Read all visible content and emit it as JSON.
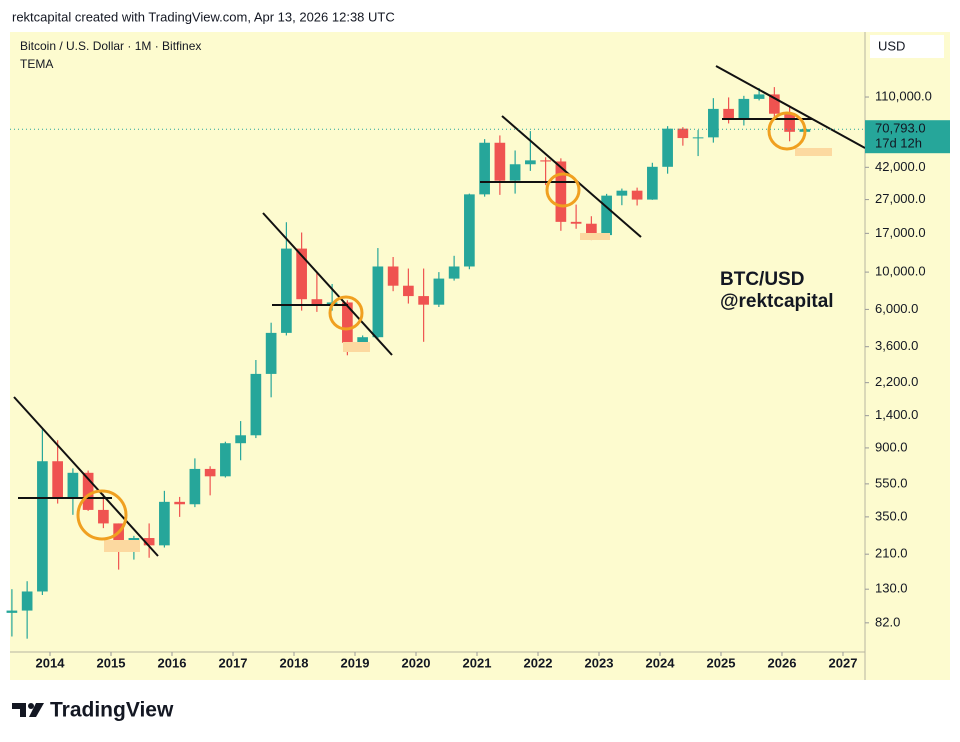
{
  "header": "rektcapital created with TradingView.com, Apr 13, 2026 12:38 UTC",
  "chart_data": {
    "type": "candlestick",
    "title": "Bitcoin / U.S. Dollar · 1M · Bitfinex",
    "subtitle": "TEMA",
    "currency": "USD",
    "annotation": [
      "BTC/USD",
      "@rektcapital"
    ],
    "log_scale": true,
    "xlim": [
      2013.344,
      2027.361
    ],
    "xticks": [
      2014,
      2015,
      2016,
      2017,
      2018,
      2019,
      2020,
      2021,
      2022,
      2023,
      2024,
      2025,
      2026,
      2027
    ],
    "ylim": [
      55,
      268000
    ],
    "yticks": [
      {
        "value": 82,
        "label": "82.0"
      },
      {
        "value": 130,
        "label": "130.0"
      },
      {
        "value": 210,
        "label": "210.0"
      },
      {
        "value": 350,
        "label": "350.0"
      },
      {
        "value": 550,
        "label": "550.0"
      },
      {
        "value": 900,
        "label": "900.0"
      },
      {
        "value": 1400,
        "label": "1,400.0"
      },
      {
        "value": 2200,
        "label": "2,200.0"
      },
      {
        "value": 3600,
        "label": "3,600.0"
      },
      {
        "value": 6000,
        "label": "6,000.0"
      },
      {
        "value": 10000,
        "label": "10,000.0"
      },
      {
        "value": 17000,
        "label": "17,000.0"
      },
      {
        "value": 27000,
        "label": "27,000.0"
      },
      {
        "value": 42000,
        "label": "42,000.0"
      },
      {
        "value": 110000,
        "label": "110,000.0"
      }
    ],
    "current_price": {
      "value": 70793,
      "label": "70,793.0"
    },
    "countdown": "17d 12h",
    "series": [
      {
        "up_color": "#26a69a",
        "down_color": "#ef5350",
        "x": [
          2013.375,
          2013.625,
          2013.875,
          2014.125,
          2014.375,
          2014.625,
          2014.875,
          2015.125,
          2015.375,
          2015.625,
          2015.875,
          2016.125,
          2016.375,
          2016.625,
          2016.875,
          2017.125,
          2017.375,
          2017.625,
          2017.875,
          2018.125,
          2018.375,
          2018.625,
          2018.875,
          2019.125,
          2019.375,
          2019.625,
          2019.875,
          2020.125,
          2020.375,
          2020.625,
          2020.875,
          2021.125,
          2021.375,
          2021.625,
          2021.875,
          2022.125,
          2022.375,
          2022.625,
          2022.875,
          2023.125,
          2023.375,
          2023.625,
          2023.875,
          2024.125,
          2024.375,
          2024.625,
          2024.875,
          2025.125,
          2025.375,
          2025.625,
          2025.875,
          2026.125,
          2026.375
        ],
        "open": [
          94,
          97,
          126,
          750,
          450,
          640,
          385,
          320,
          245,
          262,
          237,
          430,
          416,
          675,
          610,
          960,
          1070,
          2480,
          4350,
          13800,
          6900,
          6400,
          6600,
          3800,
          4100,
          10800,
          8300,
          7200,
          6400,
          9150,
          10800,
          29000,
          58800,
          35000,
          43800,
          46200,
          45500,
          19900,
          19400,
          16600,
          28500,
          30500,
          27000,
          42300,
          71300,
          62700,
          63300,
          93500,
          82500,
          107200,
          114000,
          87500,
          68300
        ],
        "high": [
          130,
          145,
          1160,
          1000,
          680,
          660,
          480,
          320,
          270,
          320,
          500,
          460,
          780,
          700,
          980,
          1300,
          3000,
          5000,
          19800,
          17200,
          9900,
          8500,
          6800,
          4200,
          13900,
          12300,
          10500,
          10500,
          10000,
          12500,
          29300,
          61800,
          65000,
          52900,
          69000,
          48200,
          47500,
          25200,
          21500,
          29200,
          31400,
          31800,
          44700,
          73800,
          72800,
          70000,
          108300,
          109400,
          111800,
          124500,
          126000,
          97900,
          73000
        ],
        "low": [
          68,
          66,
          120,
          420,
          360,
          380,
          300,
          170,
          195,
          200,
          230,
          350,
          400,
          470,
          600,
          760,
          1030,
          1800,
          4200,
          5900,
          5800,
          5900,
          3200,
          3350,
          4000,
          7700,
          6500,
          3850,
          6200,
          8900,
          10400,
          28100,
          28800,
          29300,
          40000,
          32900,
          17600,
          18100,
          15500,
          16500,
          25000,
          24900,
          26900,
          38500,
          56500,
          49000,
          58900,
          76600,
          74500,
          105000,
          80600,
          60000,
          65700
        ],
        "close": [
          97,
          126,
          750,
          450,
          640,
          385,
          320,
          245,
          262,
          237,
          430,
          416,
          675,
          610,
          960,
          1070,
          2480,
          4350,
          13800,
          6900,
          6400,
          6600,
          3800,
          4100,
          10800,
          8300,
          7200,
          6400,
          9150,
          10800,
          29000,
          58800,
          35000,
          43800,
          46200,
          45500,
          19900,
          19400,
          16600,
          28500,
          30500,
          27000,
          42300,
          71300,
          62700,
          63300,
          93500,
          82500,
          107200,
          114000,
          87500,
          68300,
          70793
        ]
      }
    ]
  },
  "footer": "TradingView"
}
